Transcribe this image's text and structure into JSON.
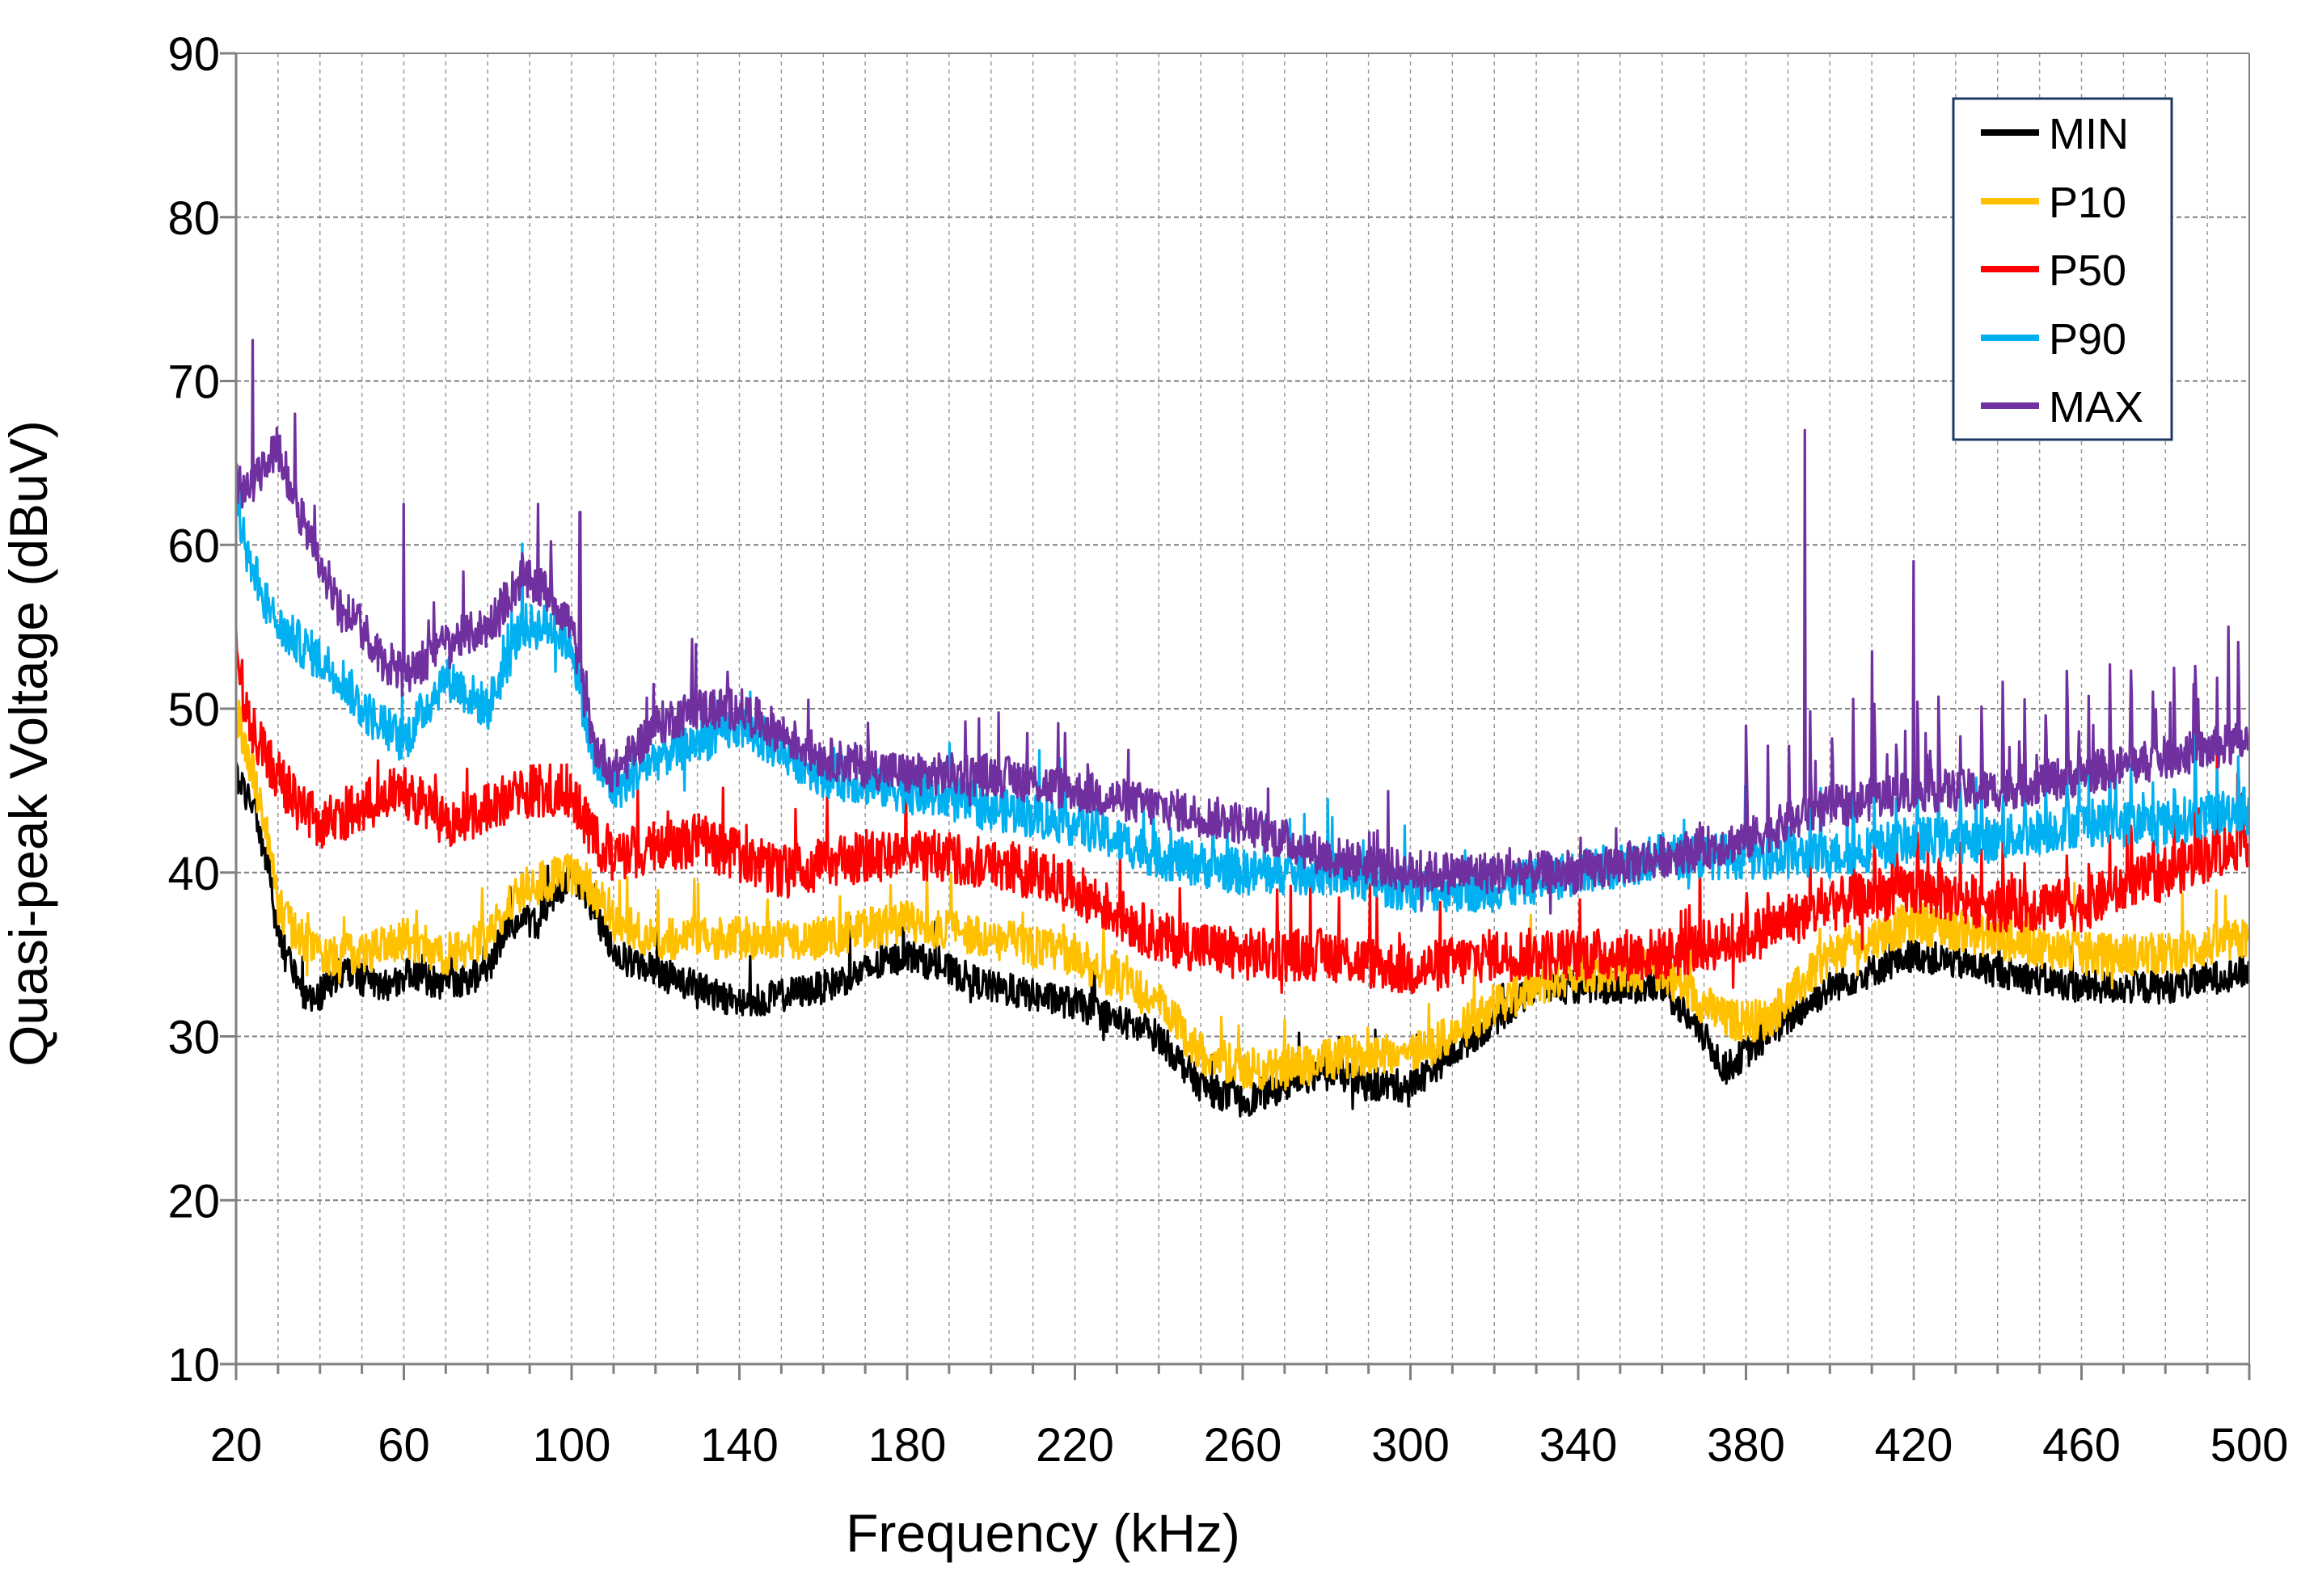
{
  "chart_data": {
    "type": "line",
    "title": "",
    "xlabel": "Frequency (kHz)",
    "ylabel": "Quasi-peak Voltage (dBuV)",
    "xlim": [
      20,
      500
    ],
    "ylim": [
      10,
      90
    ],
    "x_major_ticks": [
      20,
      60,
      100,
      140,
      180,
      220,
      260,
      300,
      340,
      380,
      420,
      460,
      500
    ],
    "x_minor_step": 10,
    "y_ticks": [
      10,
      20,
      30,
      40,
      50,
      60,
      70,
      80,
      90
    ],
    "grid": true,
    "legend_position": "top-right",
    "series": [
      {
        "name": "MIN",
        "color": "#000000",
        "x": [
          20,
          24,
          28,
          30,
          35,
          38,
          45,
          55,
          62,
          70,
          80,
          85,
          92,
          100,
          105,
          110,
          120,
          130,
          140,
          160,
          180,
          200,
          220,
          240,
          250,
          260,
          270,
          280,
          290,
          300,
          310,
          320,
          330,
          340,
          360,
          370,
          375,
          385,
          400,
          420,
          440,
          460,
          480,
          500
        ],
        "y": [
          46,
          44,
          40,
          36,
          33,
          32,
          34,
          33,
          34,
          33,
          34,
          37,
          37,
          40,
          38,
          35,
          34,
          33,
          32,
          33,
          35,
          33,
          32,
          30,
          27,
          26,
          27,
          28,
          27,
          27,
          29,
          31,
          33,
          33,
          33,
          30,
          28,
          30,
          33,
          35,
          34,
          33,
          33,
          34
        ],
        "amp": 1.0
      },
      {
        "name": "P10",
        "color": "#FFC000",
        "x": [
          20,
          24,
          28,
          30,
          35,
          40,
          50,
          60,
          70,
          80,
          88,
          100,
          105,
          110,
          120,
          140,
          160,
          180,
          200,
          220,
          240,
          250,
          260,
          270,
          290,
          300,
          310,
          320,
          340,
          360,
          375,
          385,
          400,
          420,
          440,
          460,
          480,
          500
        ],
        "y": [
          50,
          46,
          42,
          38,
          36,
          35,
          35,
          36,
          35,
          36,
          39,
          40,
          39,
          37,
          36,
          36,
          36,
          37,
          36,
          35,
          32,
          29,
          28,
          28,
          29,
          29,
          30,
          32,
          34,
          34,
          31,
          31,
          35,
          37,
          36,
          35,
          35,
          36
        ],
        "amp": 1.3
      },
      {
        "name": "P50",
        "color": "#FF0000",
        "x": [
          20,
          22,
          25,
          30,
          35,
          40,
          50,
          60,
          70,
          80,
          90,
          100,
          105,
          110,
          130,
          150,
          170,
          190,
          210,
          220,
          240,
          260,
          280,
          300,
          320,
          340,
          360,
          380,
          400,
          420,
          440,
          460,
          480,
          500
        ],
        "y": [
          55,
          50,
          48,
          46,
          44,
          43,
          44,
          45,
          43,
          44,
          45,
          45,
          42,
          41,
          42,
          40,
          41,
          41,
          40,
          39,
          36,
          35,
          35,
          34,
          35,
          35,
          35,
          36,
          38,
          39,
          38,
          38,
          40,
          42
        ],
        "amp": 1.6
      },
      {
        "name": "P90",
        "color": "#00B0F0",
        "x": [
          20,
          22,
          25,
          28,
          30,
          35,
          40,
          45,
          50,
          55,
          60,
          70,
          75,
          80,
          88,
          95,
          100,
          105,
          110,
          120,
          140,
          160,
          180,
          200,
          220,
          240,
          260,
          280,
          300,
          320,
          340,
          360,
          380,
          400,
          420,
          440,
          460,
          480,
          500
        ],
        "y": [
          62,
          60,
          58,
          56,
          55,
          54,
          53,
          52,
          50,
          49,
          48,
          52,
          51,
          50,
          55,
          55,
          54,
          47,
          45,
          47,
          49,
          46,
          45,
          44,
          43,
          41,
          40,
          40,
          39,
          39,
          40,
          41,
          41,
          41,
          42,
          42,
          43,
          43,
          44
        ],
        "amp": 1.4
      },
      {
        "name": "MAX",
        "color": "#7030A0",
        "x": [
          20,
          22,
          25,
          30,
          35,
          40,
          45,
          50,
          55,
          60,
          70,
          80,
          88,
          95,
          100,
          105,
          110,
          120,
          130,
          140,
          160,
          180,
          200,
          220,
          240,
          260,
          280,
          300,
          320,
          340,
          360,
          380,
          400,
          420,
          440,
          460,
          480,
          500
        ],
        "y": [
          64,
          63,
          64,
          66,
          62,
          59,
          56,
          55,
          53,
          52,
          54,
          55,
          58,
          57,
          55,
          48,
          46,
          49,
          50,
          50,
          47,
          46,
          46,
          45,
          44,
          43,
          41,
          40,
          40,
          40,
          41,
          42,
          44,
          45,
          45,
          46,
          47,
          48
        ],
        "amp": 1.3,
        "spikes": [
          [
            24,
            72.5
          ],
          [
            34,
            68
          ],
          [
            60,
            62.5
          ],
          [
            92,
            62.5
          ],
          [
            102,
            62
          ],
          [
            394,
            67
          ],
          [
            410,
            53.5
          ],
          [
            420,
            59
          ],
          [
            495,
            55
          ]
        ]
      }
    ]
  }
}
